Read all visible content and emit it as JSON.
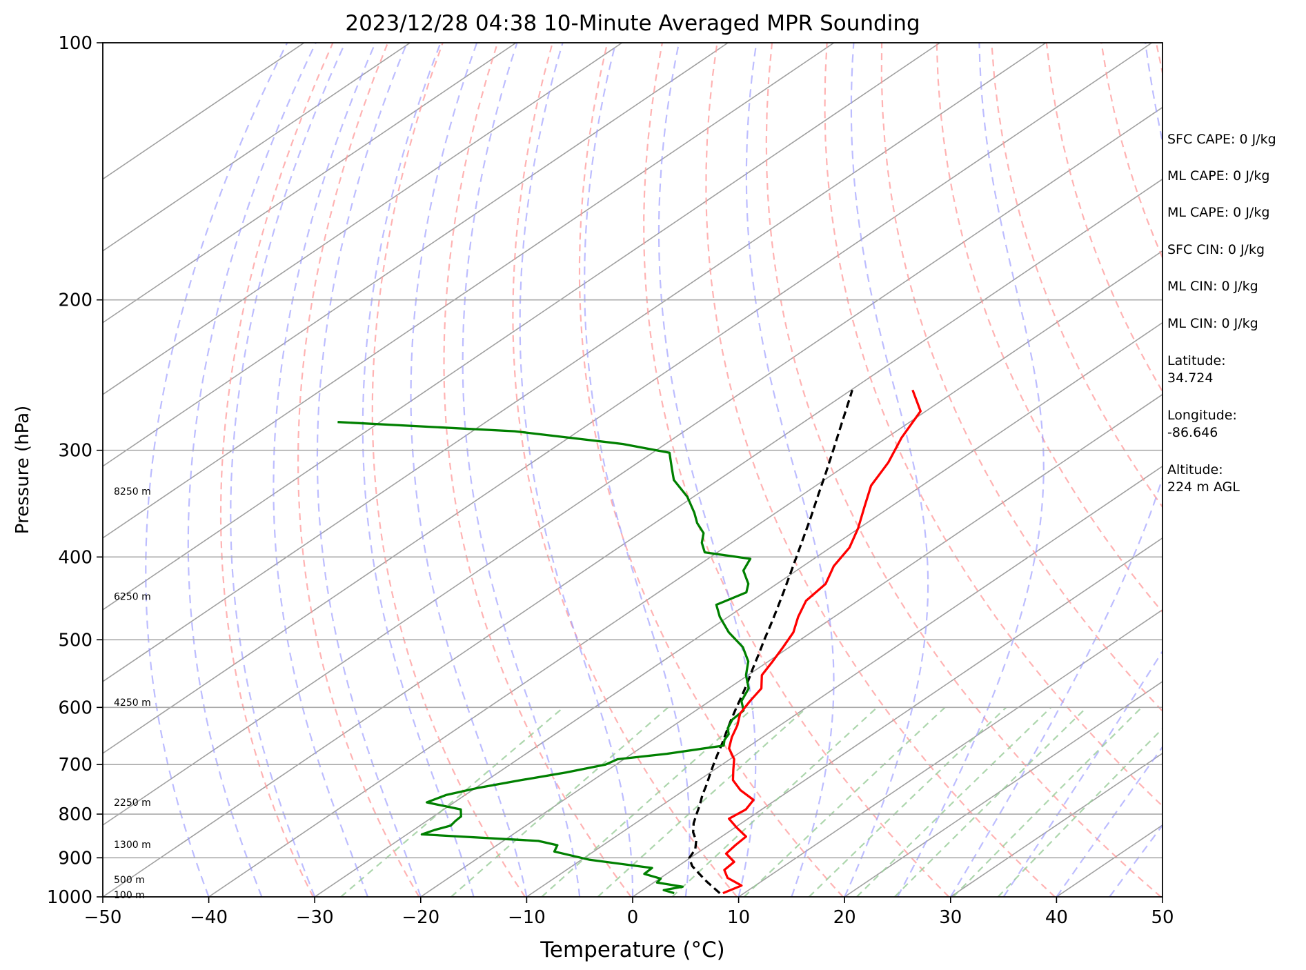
{
  "chart_data": {
    "type": "line",
    "title": "2023/12/28 04:38 10-Minute Averaged MPR Sounding",
    "xlabel": "Temperature (°C)",
    "ylabel": "Pressure (hPa)",
    "xlim": [
      -50,
      50
    ],
    "ylim": [
      1000,
      100
    ],
    "y_scale": "log",
    "grid": true,
    "x_ticks": [
      -50,
      -40,
      -30,
      -20,
      -10,
      0,
      10,
      20,
      30,
      40,
      50
    ],
    "y_ticks": [
      100,
      200,
      300,
      400,
      500,
      600,
      700,
      800,
      900,
      1000
    ],
    "x_tick_labels": [
      "−50",
      "−40",
      "−30",
      "−20",
      "−10",
      "0",
      "10",
      "20",
      "30",
      "40",
      "50"
    ],
    "y_tick_labels": [
      "100",
      "200",
      "300",
      "400",
      "500",
      "600",
      "700",
      "800",
      "900",
      "1000"
    ],
    "height_labels": [
      {
        "text": "100 m",
        "p": 994
      },
      {
        "text": "500 m",
        "p": 955
      },
      {
        "text": "1300 m",
        "p": 868
      },
      {
        "text": "2250 m",
        "p": 775
      },
      {
        "text": "4250 m",
        "p": 592
      },
      {
        "text": "6250 m",
        "p": 445
      },
      {
        "text": "8250 m",
        "p": 335
      }
    ],
    "temperature": {
      "color": "#ff0000",
      "p": [
        990,
        970,
        950,
        930,
        910,
        890,
        870,
        850,
        830,
        810,
        790,
        770,
        750,
        730,
        710,
        690,
        670,
        650,
        630,
        610,
        590,
        570,
        550,
        530,
        510,
        490,
        470,
        450,
        430,
        410,
        390,
        370,
        350,
        330,
        310,
        290,
        270,
        255
      ],
      "t": [
        8.0,
        8.7,
        6.3,
        4.9,
        4.7,
        2.8,
        2.5,
        2.3,
        0.2,
        -1.8,
        -1.5,
        -2.1,
        -4.7,
        -6.8,
        -8.2,
        -9.6,
        -11.6,
        -12.9,
        -14.0,
        -15.4,
        -16.2,
        -16.9,
        -18.7,
        -19.6,
        -20.6,
        -21.7,
        -23.4,
        -24.9,
        -25.4,
        -27.1,
        -28.2,
        -30.1,
        -32.4,
        -34.8,
        -36.4,
        -38.6,
        -40.5,
        -44.2
      ]
    },
    "dewpoint": {
      "color": "#008000",
      "p": [
        990,
        982,
        973,
        962,
        952,
        940,
        925,
        905,
        885,
        870,
        860,
        845,
        835,
        825,
        815,
        805,
        790,
        775,
        760,
        745,
        730,
        715,
        700,
        690,
        680,
        665,
        655,
        645,
        635,
        620,
        605,
        590,
        570,
        550,
        530,
        510,
        490,
        470,
        455,
        440,
        430,
        415,
        402,
        395,
        385,
        375,
        365,
        355,
        340,
        325,
        315,
        302,
        295,
        285,
        278
      ],
      "t": [
        3.4,
        2.0,
        3.3,
        0.3,
        0.1,
        -2.1,
        -2.2,
        -9.2,
        -13.7,
        -14.3,
        -16.7,
        -28.6,
        -28.0,
        -27.1,
        -27.3,
        -27.4,
        -28.4,
        -32.6,
        -31.8,
        -29.7,
        -26.8,
        -23.6,
        -21.0,
        -20.6,
        -16.7,
        -12.5,
        -13.2,
        -13.6,
        -14.5,
        -15.3,
        -15.5,
        -17.0,
        -18.1,
        -20.2,
        -21.9,
        -24.4,
        -27.8,
        -30.8,
        -32.8,
        -31.7,
        -32.7,
        -35.0,
        -36.0,
        -41.2,
        -42.8,
        -44.0,
        -46.0,
        -47.7,
        -50.6,
        -54.2,
        -56.0,
        -58.4,
        -64.0,
        -76.0,
        -94.0
      ]
    },
    "parcel_profile": {
      "color": "#000000",
      "style": "dashed",
      "p": [
        990,
        960,
        940,
        920,
        900,
        880,
        860,
        840,
        820,
        800,
        780,
        760,
        740,
        720,
        700,
        680,
        660,
        640,
        620,
        600,
        580,
        560,
        540,
        520,
        500,
        480,
        460,
        440,
        420,
        400,
        380,
        360,
        340,
        320,
        300,
        280,
        260,
        255
      ],
      "t": [
        7.7,
        4.9,
        3.1,
        1.3,
        -0.1,
        -0.7,
        -1.8,
        -3.3,
        -4.5,
        -5.5,
        -6.5,
        -7.6,
        -8.6,
        -9.7,
        -10.8,
        -11.9,
        -13.0,
        -14.2,
        -15.4,
        -16.6,
        -17.8,
        -19.1,
        -20.5,
        -21.9,
        -23.4,
        -24.9,
        -26.5,
        -28.2,
        -30.0,
        -31.9,
        -33.9,
        -36.0,
        -38.3,
        -40.7,
        -43.3,
        -46.1,
        -49.1,
        -49.9
      ]
    },
    "background_lines": {
      "isotherms": {
        "color": "#a0a0a0"
      },
      "dry_adiabats": {
        "color": "#ff9999",
        "style": "dashed"
      },
      "moist_adiabats": {
        "color": "#9999ff",
        "style": "dashed"
      },
      "mixing_ratio_lines": {
        "color": "#99cc99",
        "style": "dashed"
      }
    }
  },
  "side_panel": {
    "sfc_cape": "SFC CAPE: 0 J/kg",
    "ml_cape_1": "ML CAPE: 0 J/kg",
    "ml_cape_2": "ML CAPE: 0 J/kg",
    "sfc_cin": "SFC CIN: 0 J/kg",
    "ml_cin_1": "ML CIN: 0 J/kg",
    "ml_cin_2": "ML CIN: 0 J/kg",
    "latitude": "Latitude:\n34.724",
    "longitude": "Longitude:\n-86.646",
    "altitude": "Altitude:\n224 m AGL"
  }
}
